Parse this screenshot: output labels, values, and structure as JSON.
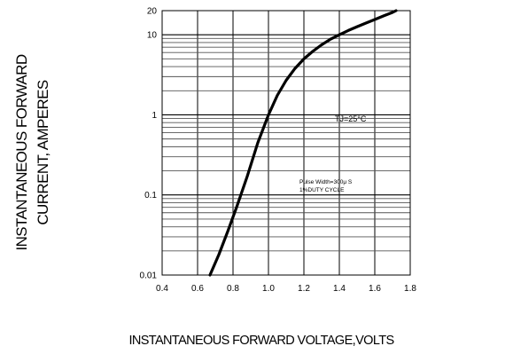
{
  "chart_data": {
    "type": "line",
    "title": "",
    "xlabel": "INSTANTANEOUS FORWARD VOLTAGE,VOLTS",
    "ylabel_line1": "INSTANTANEOUS FORWARD",
    "ylabel_line2": "CURRENT, AMPERES",
    "x_scale": "linear",
    "y_scale": "log",
    "xlim": [
      0.4,
      1.8
    ],
    "ylim": [
      0.01,
      20
    ],
    "x_ticks": [
      "0.4",
      "0.6",
      "0.8",
      "1.0",
      "1.2",
      "1.4",
      "1.6",
      "1.8"
    ],
    "y_ticks": [
      {
        "value": 20,
        "label": "20"
      },
      {
        "value": 10,
        "label": "10"
      },
      {
        "value": 1,
        "label": "1"
      },
      {
        "value": 0.1,
        "label": "0.1"
      },
      {
        "value": 0.01,
        "label": "0.01"
      }
    ],
    "grid": true,
    "annotations": {
      "temperature": "TJ=25°C",
      "pulse_line1": "Pulse Width=300μ S",
      "pulse_line2": "1%DUTY CYCLE"
    },
    "series": [
      {
        "x": [
          0.67,
          0.72,
          0.77,
          0.82,
          0.88,
          0.94,
          1.0,
          1.05,
          1.1,
          1.15,
          1.2,
          1.25,
          1.3,
          1.35,
          1.4,
          1.45,
          1.5,
          1.55,
          1.6,
          1.65,
          1.7,
          1.72
        ],
        "y": [
          0.01,
          0.018,
          0.035,
          0.07,
          0.17,
          0.45,
          1.0,
          1.75,
          2.7,
          3.8,
          5.0,
          6.2,
          7.5,
          8.8,
          10.0,
          11.3,
          12.6,
          14.0,
          15.5,
          17.2,
          19.0,
          20.0
        ]
      }
    ]
  }
}
